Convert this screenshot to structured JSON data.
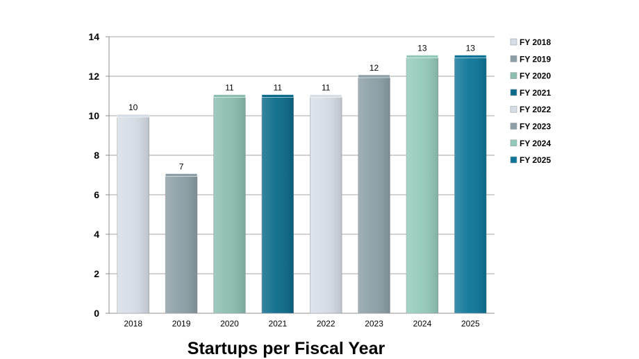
{
  "chart_data": {
    "type": "bar",
    "title": "Startups per Fiscal Year",
    "xlabel": "",
    "ylabel": "",
    "ylim": [
      0,
      14
    ],
    "yticks": [
      0,
      2,
      4,
      6,
      8,
      10,
      12,
      14
    ],
    "grid": true,
    "legend_position": "right",
    "categories": [
      "2018",
      "2019",
      "2020",
      "2021",
      "2022",
      "2023",
      "2024",
      "2025"
    ],
    "values": [
      10,
      7,
      11,
      11,
      11,
      12,
      13,
      13
    ],
    "series": [
      {
        "name": "FY 2018",
        "category": "2018",
        "value": 10,
        "color": "#d6dde5"
      },
      {
        "name": "FY 2019",
        "category": "2019",
        "value": 7,
        "color": "#8c9ea6"
      },
      {
        "name": "FY 2020",
        "category": "2020",
        "value": 11,
        "color": "#8bbdb0"
      },
      {
        "name": "FY 2021",
        "category": "2021",
        "value": 11,
        "color": "#0a6a89"
      },
      {
        "name": "FY 2022",
        "category": "2022",
        "value": 11,
        "color": "#d6dde5"
      },
      {
        "name": "FY 2023",
        "category": "2023",
        "value": 12,
        "color": "#8c9ea6"
      },
      {
        "name": "FY 2024",
        "category": "2024",
        "value": 13,
        "color": "#93c9bb"
      },
      {
        "name": "FY 2025",
        "category": "2025",
        "value": 13,
        "color": "#0d7698"
      }
    ]
  }
}
